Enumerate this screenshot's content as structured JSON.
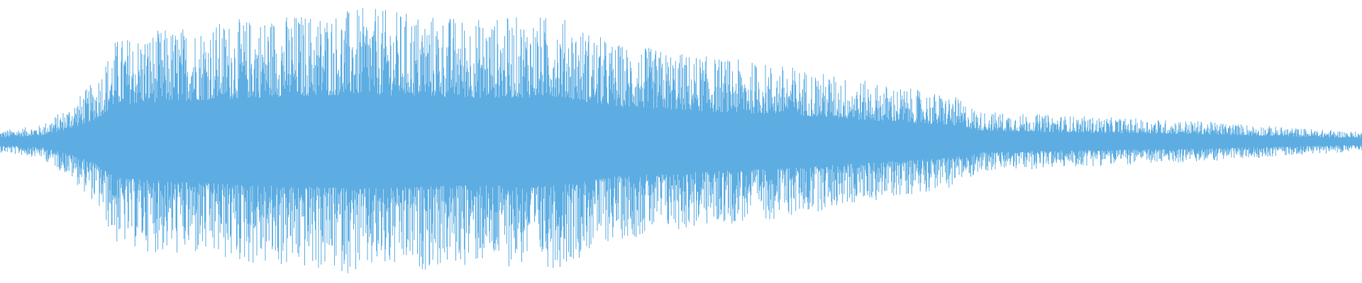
{
  "waveform": {
    "color": "#5DADE2",
    "background": "#FFFFFF",
    "envelope": [
      {
        "time_fraction": 0.0,
        "amplitude": 0.08
      },
      {
        "time_fraction": 0.03,
        "amplitude": 0.12
      },
      {
        "time_fraction": 0.05,
        "amplitude": 0.25
      },
      {
        "time_fraction": 0.07,
        "amplitude": 0.45
      },
      {
        "time_fraction": 0.085,
        "amplitude": 0.75
      },
      {
        "time_fraction": 0.12,
        "amplitude": 0.82
      },
      {
        "time_fraction": 0.2,
        "amplitude": 0.92
      },
      {
        "time_fraction": 0.27,
        "amplitude": 0.97
      },
      {
        "time_fraction": 0.35,
        "amplitude": 0.9
      },
      {
        "time_fraction": 0.41,
        "amplitude": 0.92
      },
      {
        "time_fraction": 0.45,
        "amplitude": 0.72
      },
      {
        "time_fraction": 0.52,
        "amplitude": 0.62
      },
      {
        "time_fraction": 0.58,
        "amplitude": 0.55
      },
      {
        "time_fraction": 0.63,
        "amplitude": 0.45
      },
      {
        "time_fraction": 0.7,
        "amplitude": 0.33
      },
      {
        "time_fraction": 0.72,
        "amplitude": 0.22
      },
      {
        "time_fraction": 0.8,
        "amplitude": 0.18
      },
      {
        "time_fraction": 0.88,
        "amplitude": 0.15
      },
      {
        "time_fraction": 0.95,
        "amplitude": 0.1
      },
      {
        "time_fraction": 1.0,
        "amplitude": 0.07
      }
    ]
  }
}
